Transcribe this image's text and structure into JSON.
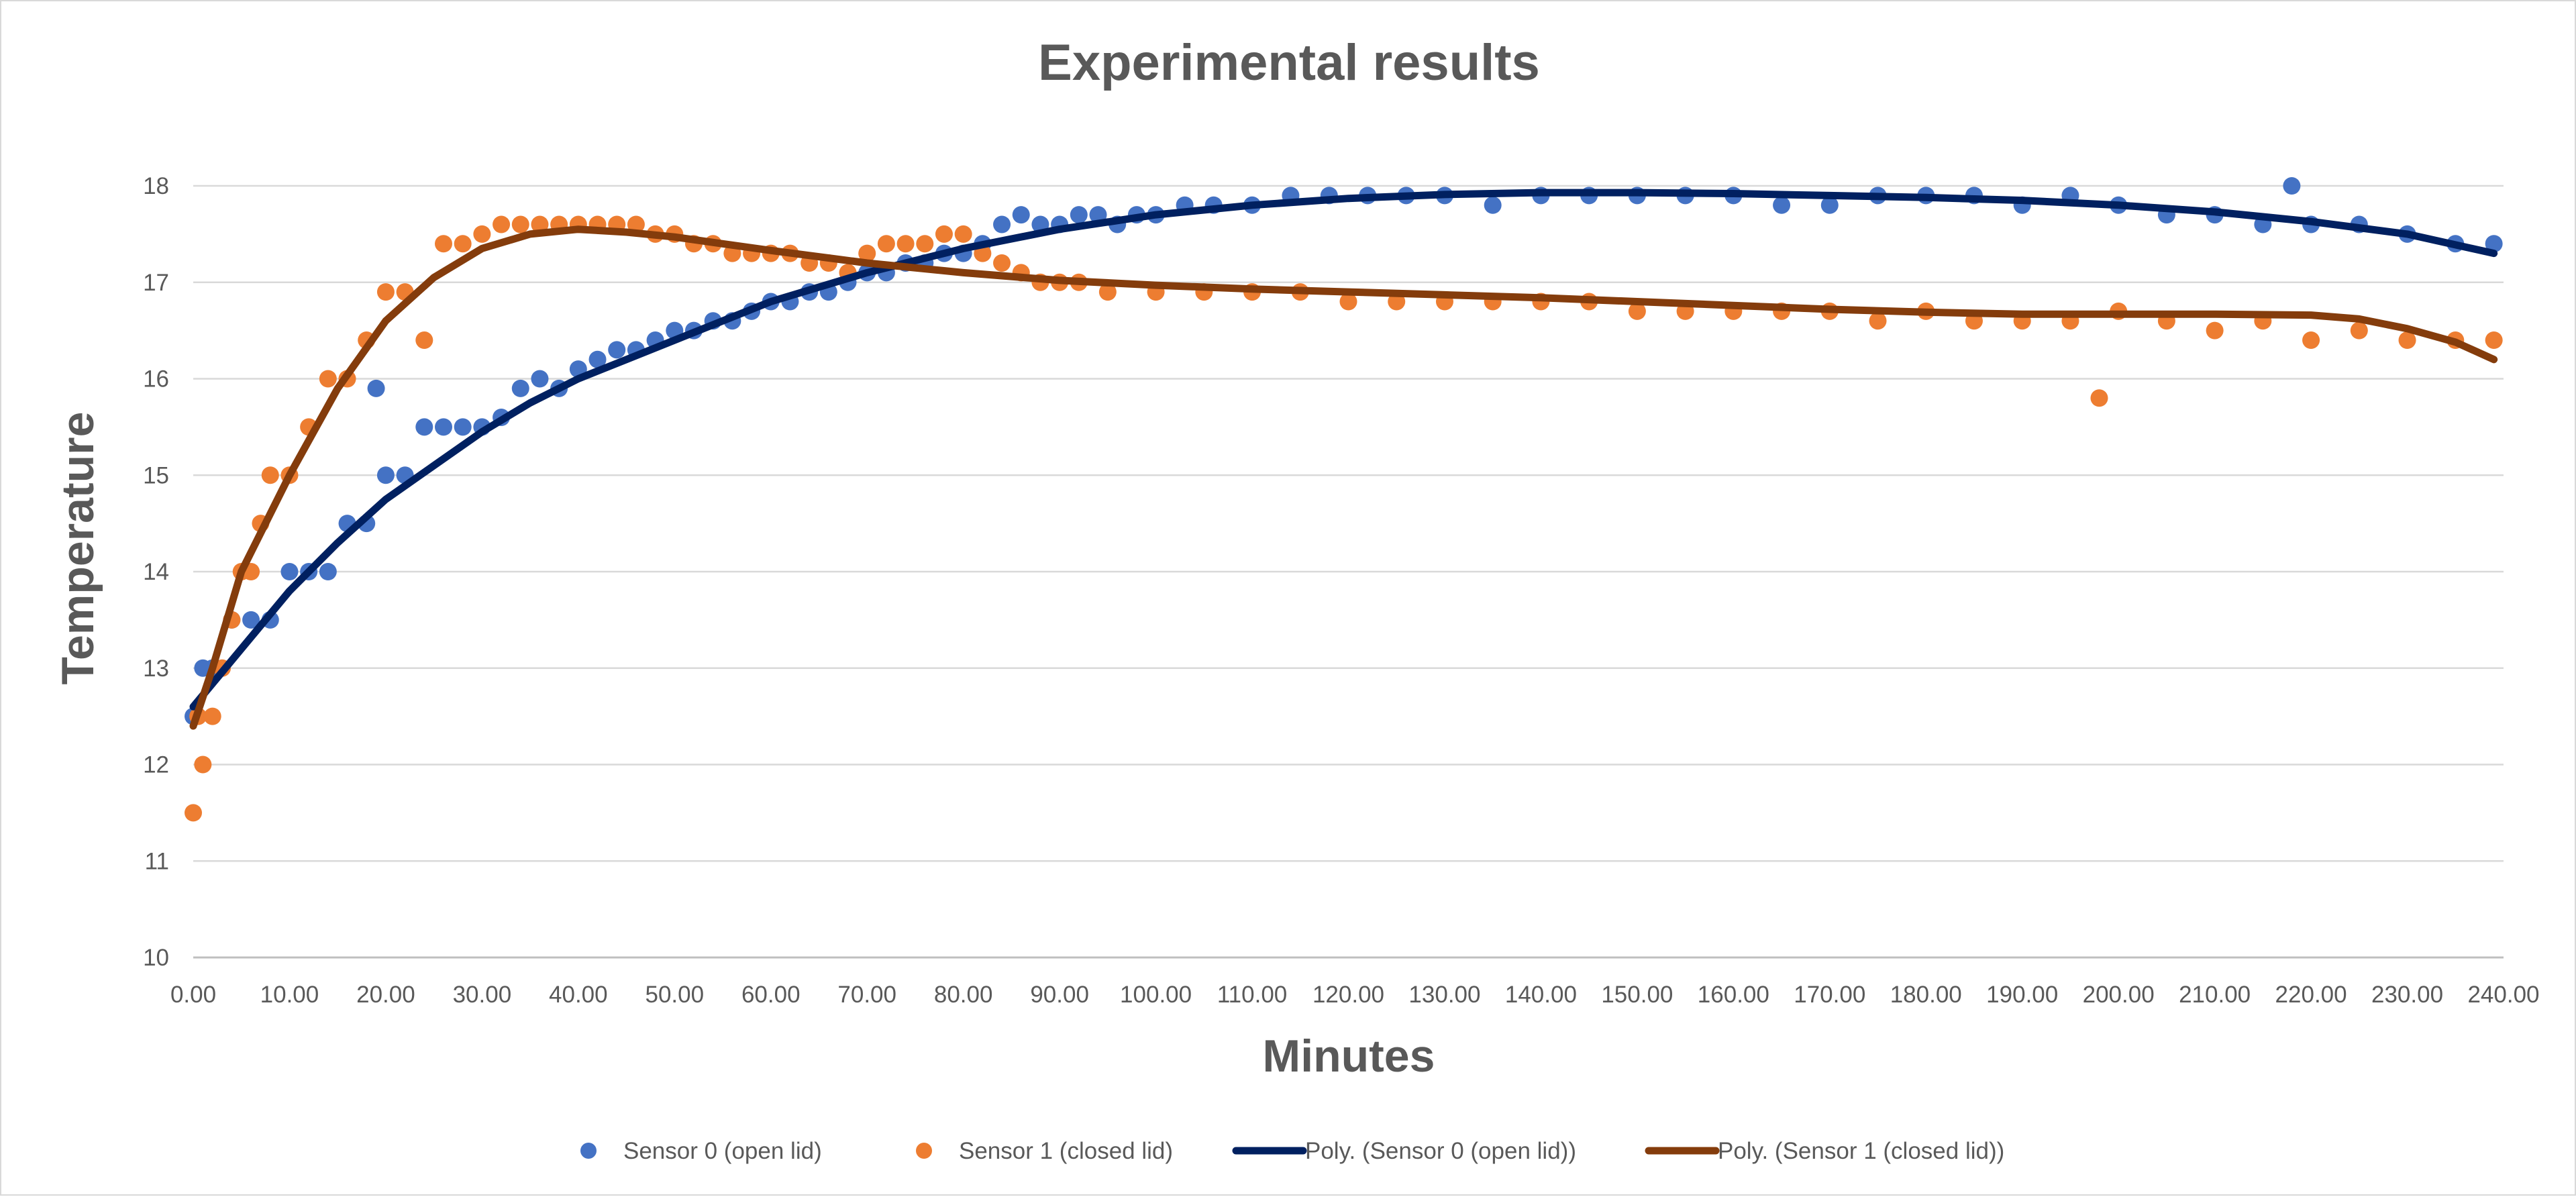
{
  "chart_data": {
    "type": "scatter",
    "title": "Experimental results",
    "xlabel": "Minutes",
    "ylabel": "Temperature",
    "xlim": [
      0,
      240
    ],
    "ylim": [
      10,
      18
    ],
    "x_ticks": [
      "0.00",
      "10.00",
      "20.00",
      "30.00",
      "40.00",
      "50.00",
      "60.00",
      "70.00",
      "80.00",
      "90.00",
      "100.00",
      "110.00",
      "120.00",
      "130.00",
      "140.00",
      "150.00",
      "160.00",
      "170.00",
      "180.00",
      "190.00",
      "200.00",
      "210.00",
      "220.00",
      "230.00",
      "240.00"
    ],
    "y_ticks": [
      "10",
      "11",
      "12",
      "13",
      "14",
      "15",
      "16",
      "17",
      "18"
    ],
    "grid": "horizontal",
    "legend_position": "bottom",
    "series": [
      {
        "name": "Sensor 0 (open lid)",
        "kind": "scatter",
        "color": "#4472c4",
        "x": [
          0,
          1,
          2,
          4,
          6,
          8,
          10,
          12,
          14,
          16,
          18,
          19,
          20,
          22,
          24,
          26,
          28,
          30,
          32,
          34,
          36,
          38,
          40,
          42,
          44,
          46,
          48,
          50,
          52,
          54,
          56,
          58,
          60,
          62,
          64,
          66,
          68,
          70,
          72,
          74,
          76,
          78,
          80,
          82,
          84,
          86,
          88,
          90,
          92,
          94,
          96,
          98,
          100,
          103,
          106,
          110,
          114,
          118,
          122,
          126,
          130,
          135,
          140,
          145,
          150,
          155,
          160,
          165,
          170,
          175,
          180,
          185,
          190,
          195,
          200,
          205,
          210,
          215,
          218,
          220,
          225,
          230,
          235,
          239
        ],
        "y": [
          12.5,
          13.0,
          13.0,
          13.5,
          13.5,
          13.5,
          14.0,
          14.0,
          14.0,
          14.5,
          14.5,
          15.9,
          15.0,
          15.0,
          15.5,
          15.5,
          15.5,
          15.5,
          15.6,
          15.9,
          16.0,
          15.9,
          16.1,
          16.2,
          16.3,
          16.3,
          16.4,
          16.5,
          16.5,
          16.6,
          16.6,
          16.7,
          16.8,
          16.8,
          16.9,
          16.9,
          17.0,
          17.1,
          17.1,
          17.2,
          17.2,
          17.3,
          17.3,
          17.4,
          17.6,
          17.7,
          17.6,
          17.6,
          17.7,
          17.7,
          17.6,
          17.7,
          17.7,
          17.8,
          17.8,
          17.8,
          17.9,
          17.9,
          17.9,
          17.9,
          17.9,
          17.8,
          17.9,
          17.9,
          17.9,
          17.9,
          17.9,
          17.8,
          17.8,
          17.9,
          17.9,
          17.9,
          17.8,
          17.9,
          17.8,
          17.7,
          17.7,
          17.6,
          18.0,
          17.6,
          17.6,
          17.5,
          17.4,
          17.4
        ]
      },
      {
        "name": "Sensor 1 (closed lid)",
        "kind": "scatter",
        "color": "#ed7d31",
        "x": [
          0,
          0.5,
          1,
          2,
          3,
          4,
          5,
          6,
          7,
          8,
          10,
          12,
          14,
          16,
          18,
          20,
          22,
          24,
          26,
          28,
          30,
          32,
          34,
          36,
          38,
          40,
          42,
          44,
          46,
          48,
          50,
          52,
          54,
          56,
          58,
          60,
          62,
          64,
          66,
          68,
          70,
          72,
          74,
          76,
          78,
          80,
          82,
          84,
          86,
          88,
          90,
          92,
          95,
          100,
          105,
          110,
          115,
          120,
          125,
          130,
          135,
          140,
          145,
          150,
          155,
          160,
          165,
          170,
          175,
          180,
          185,
          190,
          195,
          198,
          200,
          205,
          210,
          215,
          220,
          225,
          230,
          235,
          239
        ],
        "y": [
          11.5,
          12.5,
          12.0,
          12.5,
          13.0,
          13.5,
          14.0,
          14.0,
          14.5,
          15.0,
          15.0,
          15.5,
          16.0,
          16.0,
          16.4,
          16.9,
          16.9,
          16.4,
          17.4,
          17.4,
          17.5,
          17.6,
          17.6,
          17.6,
          17.6,
          17.6,
          17.6,
          17.6,
          17.6,
          17.5,
          17.5,
          17.4,
          17.4,
          17.3,
          17.3,
          17.3,
          17.3,
          17.2,
          17.2,
          17.1,
          17.3,
          17.4,
          17.4,
          17.4,
          17.5,
          17.5,
          17.3,
          17.2,
          17.1,
          17.0,
          17.0,
          17.0,
          16.9,
          16.9,
          16.9,
          16.9,
          16.9,
          16.8,
          16.8,
          16.8,
          16.8,
          16.8,
          16.8,
          16.7,
          16.7,
          16.7,
          16.7,
          16.7,
          16.6,
          16.7,
          16.6,
          16.6,
          16.6,
          15.8,
          16.7,
          16.6,
          16.5,
          16.6,
          16.4,
          16.5,
          16.4,
          16.4,
          16.4
        ]
      },
      {
        "name": "Poly. (Sensor 0 (open lid))",
        "kind": "trendline",
        "color": "#002060",
        "x": [
          0,
          5,
          10,
          15,
          20,
          25,
          30,
          35,
          40,
          45,
          50,
          60,
          70,
          80,
          90,
          100,
          110,
          120,
          130,
          140,
          150,
          160,
          170,
          180,
          190,
          200,
          210,
          220,
          230,
          239
        ],
        "y": [
          12.6,
          13.2,
          13.8,
          14.3,
          14.75,
          15.1,
          15.45,
          15.75,
          16.0,
          16.2,
          16.4,
          16.8,
          17.1,
          17.35,
          17.55,
          17.7,
          17.8,
          17.87,
          17.91,
          17.93,
          17.93,
          17.92,
          17.9,
          17.88,
          17.85,
          17.8,
          17.73,
          17.63,
          17.5,
          17.3
        ]
      },
      {
        "name": "Poly. (Sensor 1 (closed lid))",
        "kind": "trendline",
        "color": "#843c0c",
        "x": [
          0,
          2,
          5,
          10,
          15,
          20,
          25,
          30,
          35,
          40,
          45,
          50,
          55,
          60,
          70,
          80,
          90,
          100,
          110,
          120,
          130,
          140,
          150,
          160,
          170,
          180,
          190,
          200,
          210,
          220,
          225,
          230,
          235,
          239
        ],
        "y": [
          12.4,
          13.0,
          14.0,
          15.0,
          15.9,
          16.6,
          17.05,
          17.35,
          17.5,
          17.55,
          17.52,
          17.47,
          17.4,
          17.33,
          17.2,
          17.1,
          17.02,
          16.97,
          16.93,
          16.9,
          16.87,
          16.84,
          16.8,
          16.76,
          16.72,
          16.69,
          16.67,
          16.67,
          16.67,
          16.66,
          16.62,
          16.52,
          16.38,
          16.2
        ]
      }
    ]
  }
}
